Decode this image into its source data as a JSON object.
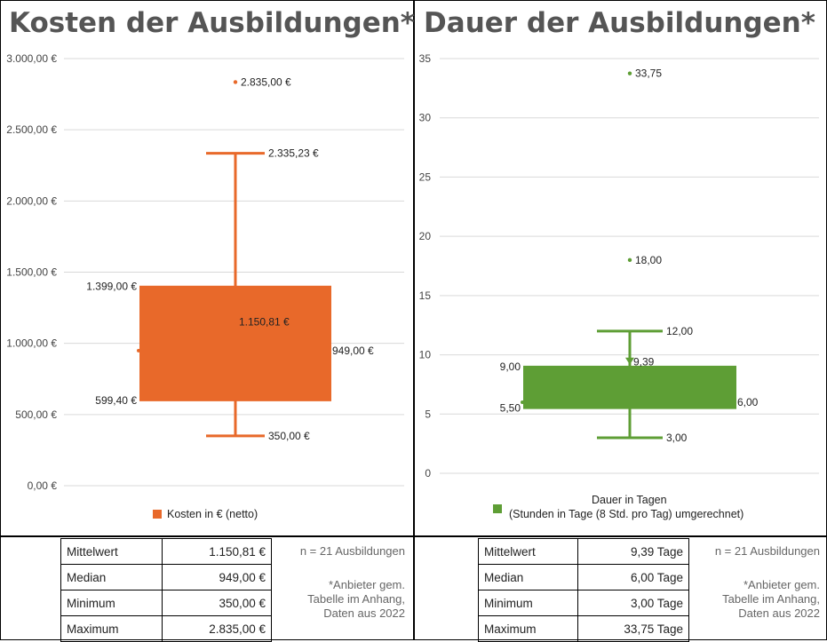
{
  "left": {
    "title": "Kosten der Ausbildungen*",
    "legend": "Kosten in € (netto)",
    "stats": [
      {
        "label": "Mittelwert",
        "value": "1.150,81 €"
      },
      {
        "label": "Median",
        "value": "949,00 €"
      },
      {
        "label": "Minimum",
        "value": "350,00 €"
      },
      {
        "label": "Maximum",
        "value": "2.835,00 €"
      }
    ],
    "n_note": "n = 21 Ausbildungen",
    "footnote": [
      "*Anbieter gem.",
      "Tabelle im Anhang,",
      "Daten aus 2022"
    ]
  },
  "right": {
    "title": "Dauer der Ausbildungen*",
    "legend": [
      "Dauer in Tagen",
      "(Stunden in Tage (8 Std. pro Tag) umgerechnet)"
    ],
    "stats": [
      {
        "label": "Mittelwert",
        "value": "9,39 Tage"
      },
      {
        "label": "Median",
        "value": "6,00 Tage"
      },
      {
        "label": "Minimum",
        "value": "3,00 Tage"
      },
      {
        "label": "Maximum",
        "value": "33,75 Tage"
      }
    ],
    "n_note": "n = 21 Ausbildungen",
    "footnote": [
      "*Anbieter gem.",
      "Tabelle im Anhang,",
      "Daten aus 2022"
    ]
  },
  "chart_data": [
    {
      "type": "box",
      "title": "Kosten der Ausbildungen*",
      "ylim": [
        0,
        3000
      ],
      "yticks": [
        0,
        500,
        1000,
        1500,
        2000,
        2500,
        3000
      ],
      "ytick_labels": [
        "0,00 €",
        "500,00 €",
        "1.000,00 €",
        "1.500,00 €",
        "2.000,00 €",
        "2.500,00 €",
        "3.000,00 €"
      ],
      "color": "#E8692A",
      "series": [
        {
          "name": "Kosten in € (netto)",
          "q1": 599.4,
          "median": 949.0,
          "q3": 1399.0,
          "mean": 1150.81,
          "whisker_low": 350.0,
          "whisker_high": 2335.23,
          "outliers": [
            2835.0
          ]
        }
      ],
      "data_labels": {
        "q1": "599,40 €",
        "median": "949,00 €",
        "q3": "1.399,00 €",
        "mean": "1.150,81 €",
        "whisker_low": "350,00 €",
        "whisker_high": "2.335,23 €",
        "outliers": [
          "2.835,00 €"
        ]
      },
      "grid": true
    },
    {
      "type": "box",
      "title": "Dauer der Ausbildungen*",
      "ylim": [
        0,
        35
      ],
      "yticks": [
        0,
        5,
        10,
        15,
        20,
        25,
        30,
        35
      ],
      "ytick_labels": [
        "0",
        "5",
        "10",
        "15",
        "20",
        "25",
        "30",
        "35"
      ],
      "color": "#5E9E35",
      "series": [
        {
          "name": "Dauer in Tagen",
          "q1": 5.5,
          "median": 6.0,
          "q3": 9.0,
          "mean": 9.39,
          "whisker_low": 3.0,
          "whisker_high": 12.0,
          "outliers": [
            18.0,
            33.75
          ]
        }
      ],
      "data_labels": {
        "q1": "5,50",
        "median": "6,00",
        "q3": "9,00",
        "mean": "9,39",
        "whisker_low": "3,00",
        "whisker_high": "12,00",
        "outliers": [
          "18,00",
          "33,75"
        ]
      },
      "grid": true
    }
  ]
}
